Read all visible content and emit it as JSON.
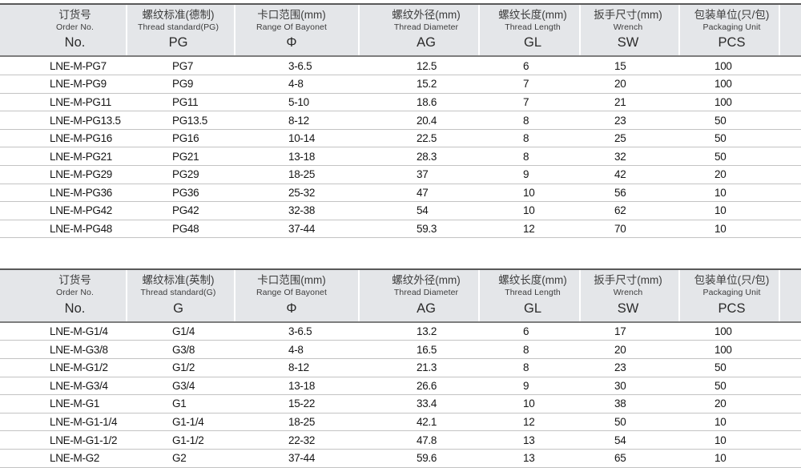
{
  "colors": {
    "header_bg": "#e4e6e9",
    "header_top_border": "#595959",
    "header_bottom_border": "#7d7d7d",
    "row_divider": "#c3c3c3",
    "header_text": "#3c3c3c",
    "data_text": "#161616",
    "background": "#ffffff"
  },
  "tables": [
    {
      "name": "metric-pg-spec-table",
      "columns": [
        {
          "key": "order-no",
          "cn": "订货号",
          "en": "Order No.",
          "code": "No."
        },
        {
          "key": "thread-standard",
          "cn": "螺纹标准(德制)",
          "en": "Thread standard(PG)",
          "code": "PG"
        },
        {
          "key": "bayonet-range",
          "cn": "卡口范围(mm)",
          "en": "Range Of Bayonet",
          "code": "Φ"
        },
        {
          "key": "thread-diameter",
          "cn": "螺纹外径(mm)",
          "en": "Thread Diameter",
          "code": "AG"
        },
        {
          "key": "thread-length",
          "cn": "螺纹长度(mm)",
          "en": "Thread Length",
          "code": "GL"
        },
        {
          "key": "wrench-size",
          "cn": "扳手尺寸(mm)",
          "en": "Wrench",
          "code": "SW"
        },
        {
          "key": "packaging-unit",
          "cn": "包装单位(只/包)",
          "en": "Packaging Unit",
          "code": "PCS"
        }
      ],
      "rows": [
        [
          "LNE-M-PG7",
          "PG7",
          "3-6.5",
          "12.5",
          "6",
          "15",
          "100"
        ],
        [
          "LNE-M-PG9",
          "PG9",
          "4-8",
          "15.2",
          "7",
          "20",
          "100"
        ],
        [
          "LNE-M-PG11",
          "PG11",
          "5-10",
          "18.6",
          "7",
          "21",
          "100"
        ],
        [
          "LNE-M-PG13.5",
          "PG13.5",
          "8-12",
          "20.4",
          "8",
          "23",
          "50"
        ],
        [
          "LNE-M-PG16",
          "PG16",
          "10-14",
          "22.5",
          "8",
          "25",
          "50"
        ],
        [
          "LNE-M-PG21",
          "PG21",
          "13-18",
          "28.3",
          "8",
          "32",
          "50"
        ],
        [
          "LNE-M-PG29",
          "PG29",
          "18-25",
          "37",
          "9",
          "42",
          "20"
        ],
        [
          "LNE-M-PG36",
          "PG36",
          "25-32",
          "47",
          "10",
          "56",
          "10"
        ],
        [
          "LNE-M-PG42",
          "PG42",
          "32-38",
          "54",
          "10",
          "62",
          "10"
        ],
        [
          "LNE-M-PG48",
          "PG48",
          "37-44",
          "59.3",
          "12",
          "70",
          "10"
        ]
      ]
    },
    {
      "name": "imperial-g-spec-table",
      "columns": [
        {
          "key": "order-no",
          "cn": "订货号",
          "en": "Order No.",
          "code": "No."
        },
        {
          "key": "thread-standard",
          "cn": "螺纹标准(英制)",
          "en": "Thread standard(G)",
          "code": "G"
        },
        {
          "key": "bayonet-range",
          "cn": "卡口范围(mm)",
          "en": "Range Of Bayonet",
          "code": "Φ"
        },
        {
          "key": "thread-diameter",
          "cn": "螺纹外径(mm)",
          "en": "Thread Diameter",
          "code": "AG"
        },
        {
          "key": "thread-length",
          "cn": "螺纹长度(mm)",
          "en": "Thread Length",
          "code": "GL"
        },
        {
          "key": "wrench-size",
          "cn": "扳手尺寸(mm)",
          "en": "Wrench",
          "code": "SW"
        },
        {
          "key": "packaging-unit",
          "cn": "包装单位(只/包)",
          "en": "Packaging Unit",
          "code": "PCS"
        }
      ],
      "rows": [
        [
          "LNE-M-G1/4",
          "G1/4",
          "3-6.5",
          "13.2",
          "6",
          "17",
          "100"
        ],
        [
          "LNE-M-G3/8",
          "G3/8",
          "4-8",
          "16.5",
          "8",
          "20",
          "100"
        ],
        [
          "LNE-M-G1/2",
          "G1/2",
          "8-12",
          "21.3",
          "8",
          "23",
          "50"
        ],
        [
          "LNE-M-G3/4",
          "G3/4",
          "13-18",
          "26.6",
          "9",
          "30",
          "50"
        ],
        [
          "LNE-M-G1",
          "G1",
          "15-22",
          "33.4",
          "10",
          "38",
          "20"
        ],
        [
          "LNE-M-G1-1/4",
          "G1-1/4",
          "18-25",
          "42.1",
          "12",
          "50",
          "10"
        ],
        [
          "LNE-M-G1-1/2",
          "G1-1/2",
          "22-32",
          "47.8",
          "13",
          "54",
          "10"
        ],
        [
          "LNE-M-G2",
          "G2",
          "37-44",
          "59.6",
          "13",
          "65",
          "10"
        ]
      ]
    }
  ]
}
